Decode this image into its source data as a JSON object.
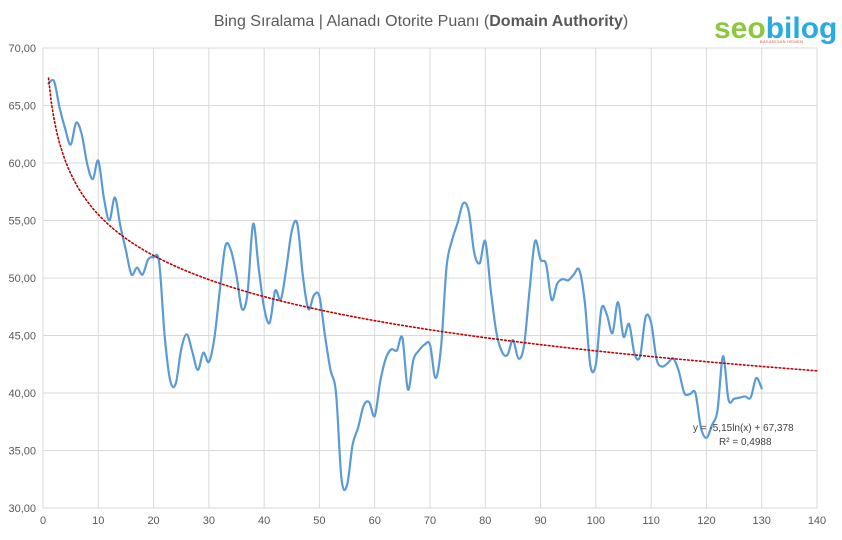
{
  "chart_data": {
    "type": "line",
    "title_prefix": "Bing Sıralama | Alanadı Otorite Puanı (",
    "title_bold": "Domain Authority",
    "title_suffix": ")",
    "xlim": [
      0,
      140
    ],
    "ylim": [
      30,
      70
    ],
    "x_ticks": [
      0,
      10,
      20,
      30,
      40,
      50,
      60,
      70,
      80,
      90,
      100,
      110,
      120,
      130,
      140
    ],
    "y_ticks": [
      "30,00",
      "35,00",
      "40,00",
      "45,00",
      "50,00",
      "55,00",
      "60,00",
      "65,00",
      "70,00"
    ],
    "grid": true,
    "series": [
      {
        "color": "#5b9bd5",
        "x": [
          1,
          2,
          3,
          4,
          5,
          6,
          7,
          8,
          9,
          10,
          11,
          12,
          13,
          14,
          15,
          16,
          17,
          18,
          19,
          20,
          21,
          22,
          23,
          24,
          25,
          26,
          27,
          28,
          29,
          30,
          31,
          32,
          33,
          34,
          35,
          36,
          37,
          38,
          39,
          40,
          41,
          42,
          43,
          44,
          45,
          46,
          47,
          48,
          49,
          50,
          51,
          52,
          53,
          54,
          55,
          56,
          57,
          58,
          59,
          60,
          61,
          62,
          63,
          64,
          65,
          66,
          67,
          68,
          69,
          70,
          71,
          72,
          73,
          74,
          75,
          76,
          77,
          78,
          79,
          80,
          81,
          82,
          83,
          84,
          85,
          86,
          87,
          88,
          89,
          90,
          91,
          92,
          93,
          94,
          95,
          96,
          97,
          98,
          99,
          100,
          101,
          102,
          103,
          104,
          105,
          106,
          107,
          108,
          109,
          110,
          111,
          112,
          113,
          114,
          115,
          116,
          117,
          118,
          119,
          120,
          121,
          122,
          123,
          124,
          125,
          126,
          127,
          128,
          129,
          130
        ],
        "y": [
          66.9,
          67.1,
          64.8,
          63.0,
          61.6,
          63.5,
          62.5,
          59.9,
          58.6,
          60.2,
          57.0,
          55.0,
          57.0,
          54.5,
          52.4,
          50.3,
          50.9,
          50.3,
          51.6,
          51.8,
          51.4,
          45.0,
          41.1,
          40.8,
          43.8,
          45.1,
          43.6,
          42.0,
          43.5,
          42.7,
          44.8,
          49.0,
          52.8,
          52.4,
          50.2,
          47.3,
          48.7,
          54.7,
          50.9,
          47.4,
          46.1,
          48.9,
          48.1,
          50.8,
          54.1,
          54.7,
          50.2,
          47.3,
          48.5,
          48.4,
          45.0,
          42.0,
          40.0,
          32.5,
          32.0,
          35.5,
          37.0,
          38.9,
          39.2,
          38.0,
          41.0,
          43.0,
          43.8,
          43.7,
          44.8,
          40.3,
          42.9,
          43.7,
          44.2,
          44.2,
          41.3,
          44.0,
          51.0,
          53.3,
          54.8,
          56.5,
          55.8,
          52.2,
          51.3,
          53.2,
          48.9,
          45.3,
          43.6,
          43.3,
          44.6,
          43.0,
          44.1,
          48.9,
          53.2,
          51.6,
          51.2,
          48.1,
          49.5,
          49.9,
          49.8,
          50.3,
          50.7,
          47.9,
          42.4,
          42.5,
          47.3,
          46.8,
          45.2,
          47.9,
          44.9,
          46.0,
          43.4,
          43.2,
          46.6,
          46.1,
          42.9,
          42.3,
          42.6,
          43.0,
          41.9,
          40.0,
          39.9,
          40.0,
          37.0,
          36.1,
          37.2,
          38.5,
          43.2,
          39.4,
          39.5,
          39.6,
          39.7,
          39.6,
          41.3,
          40.4
        ]
      }
    ],
    "trendline": {
      "type": "logarithmic",
      "a": -5.15,
      "b": 67.378,
      "x_range": [
        1,
        140
      ],
      "color": "#c00000",
      "equation": "y = -5,15ln(x) + 67,378",
      "r2": "R² = 0,4988"
    }
  },
  "logo": {
    "seo": "seo",
    "bilog": "bilog",
    "sub": "BASARIDAN HEMEN"
  }
}
